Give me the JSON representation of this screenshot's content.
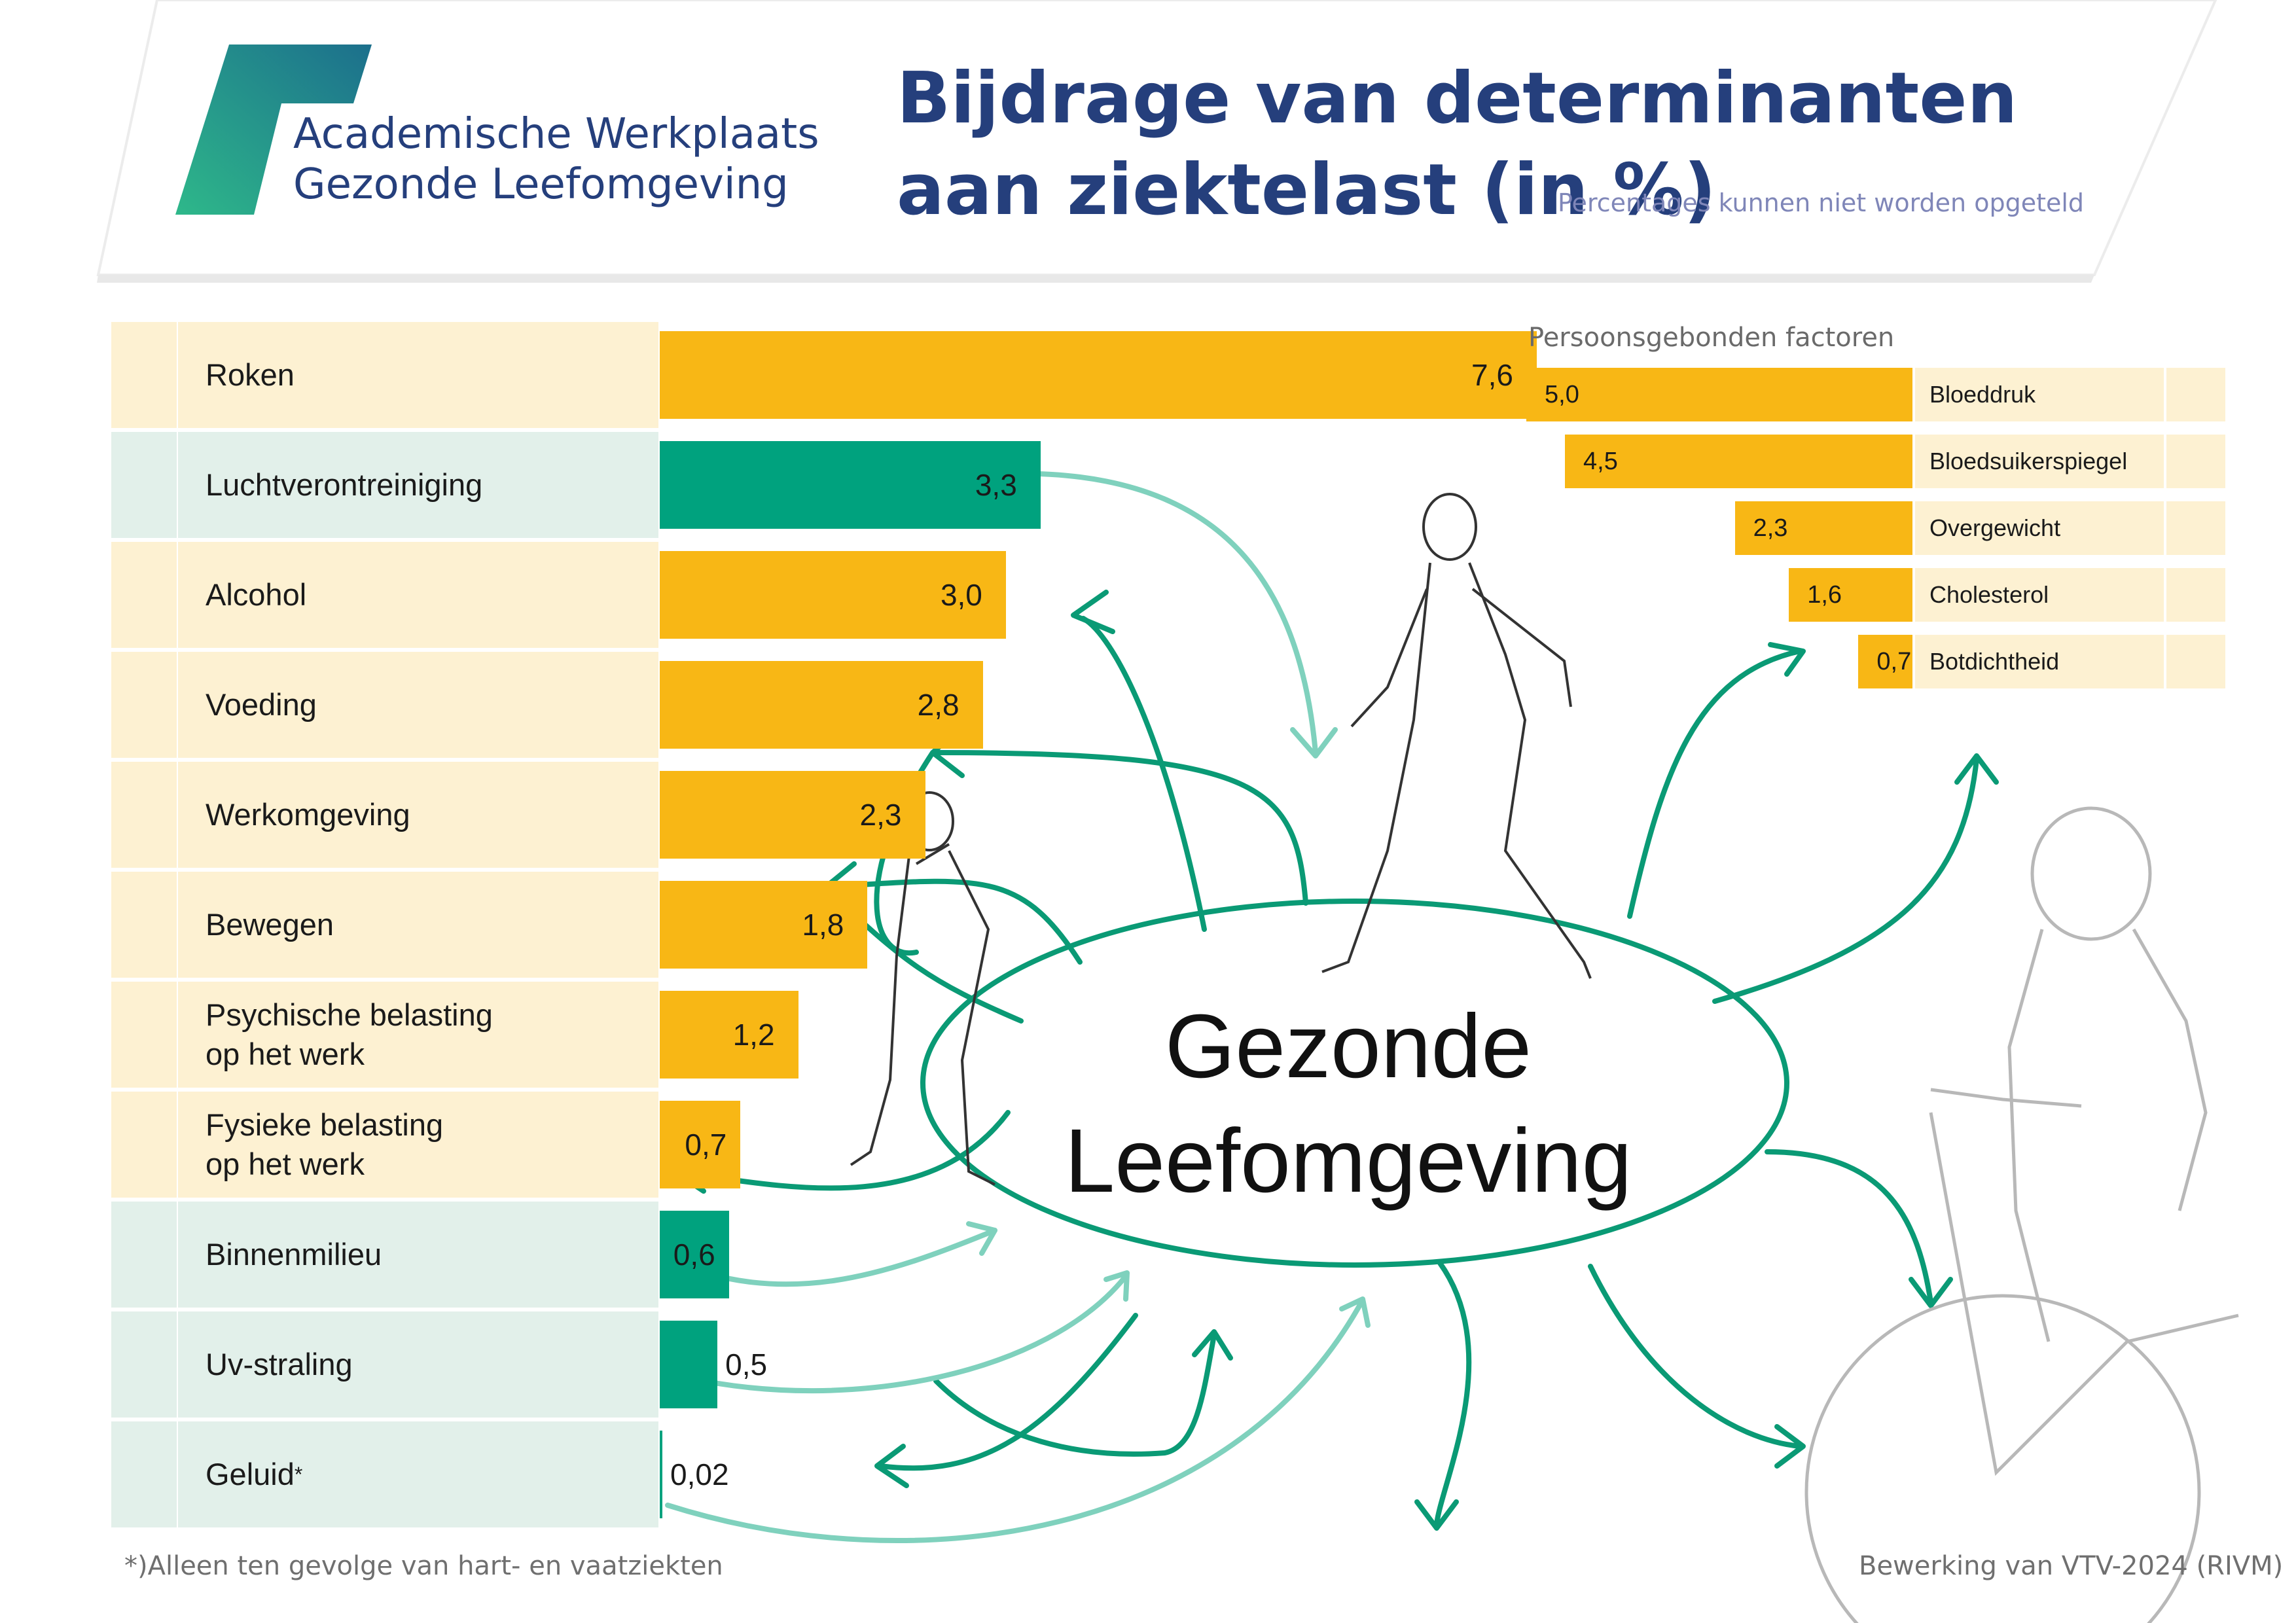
{
  "header": {
    "logo_line1": "Academische Werkplaats",
    "logo_line2": "Gezonde Leefomgeving",
    "title_line1": "Bijdrage van determinanten",
    "title_line2": "aan ziektelast (in %)",
    "subtitle": "Percentages kunnen niet worden opgeteld"
  },
  "colors": {
    "yellow": "#f8b715",
    "green": "#00a27e",
    "yellow_bg": "#fdf1d2",
    "green_bg": "#e2f0ea",
    "arrow_dark": "#0a9a75",
    "arrow_light": "#7fd1bd",
    "title_blue": "#253f7c"
  },
  "center": {
    "line1": "Gezonde",
    "line2": "Leefomgeving"
  },
  "right_section_title": "Persoonsgebonden factoren",
  "footnote": "*)Alleen ten gevolge van hart- en vaatziekten",
  "credit": "Bewerking van VTV-2024 (RIVM)",
  "chart_data": [
    {
      "type": "bar",
      "orientation": "horizontal",
      "categories": [
        "Roken",
        "Luchtverontreiniging",
        "Alcohol",
        "Voeding",
        "Werkomgeving",
        "Bewegen",
        "Psychische belasting\nop het werk",
        "Fysieke belasting\nop het werk",
        "Binnenmilieu",
        "Uv-straling",
        "Geluid"
      ],
      "values": [
        7.6,
        3.3,
        3.0,
        2.8,
        2.3,
        1.8,
        1.2,
        0.7,
        0.6,
        0.5,
        0.02
      ],
      "value_labels": [
        "7,6",
        "3,3",
        "3,0",
        "2,8",
        "2,3",
        "1,8",
        "1,2",
        "0,7",
        "0,6",
        "0,5",
        "0,02"
      ],
      "groups": [
        "yellow",
        "green",
        "yellow",
        "yellow",
        "yellow",
        "yellow",
        "yellow",
        "yellow",
        "green",
        "green",
        "green"
      ],
      "icons": [
        "cigarette-icon",
        "car-exhaust-icon",
        "wine-glass-icon",
        "food-icon",
        "workplace-icon",
        "running-icon",
        "head-brain-icon",
        "digging-worker-icon",
        "window-icon",
        "sun-rays-icon",
        "ear-icon"
      ],
      "footnote_marks": [
        "",
        "",
        "",
        "",
        "",
        "",
        "",
        "",
        "",
        "",
        "*"
      ],
      "xlim": [
        0,
        7.6
      ]
    },
    {
      "type": "bar",
      "orientation": "horizontal",
      "direction": "right-to-left",
      "title": "Persoonsgebonden factoren",
      "categories": [
        "Bloeddruk",
        "Bloedsuikerspiegel",
        "Overgewicht",
        "Cholesterol",
        "Botdichtheid"
      ],
      "values": [
        5.0,
        4.5,
        2.3,
        1.6,
        0.7
      ],
      "value_labels": [
        "5,0",
        "4,5",
        "2,3",
        "1,6",
        "0,7"
      ],
      "icons": [
        "blood-pressure-icon",
        "blood-sugar-icon",
        "scale-icon",
        "cholesterol-icon",
        "bone-icon"
      ],
      "xlim": [
        0,
        5.0
      ]
    }
  ]
}
